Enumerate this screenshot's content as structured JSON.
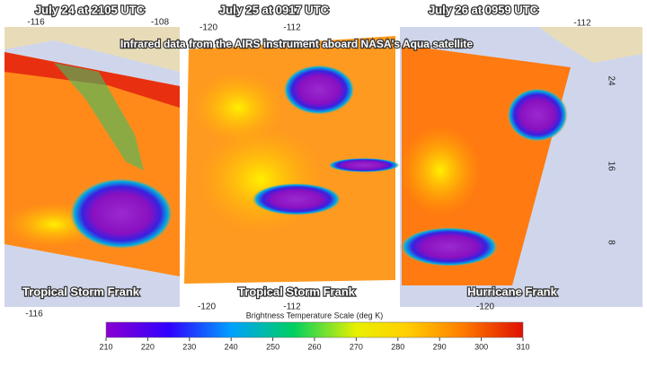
{
  "caption": "Infrared data from the AIRS instrument aboard NASA's Aqua satellite",
  "panels": [
    {
      "title": "July 24 at 2105 UTC",
      "label": "Tropical Storm Frank",
      "top_ticks": [
        "-116",
        "-108"
      ],
      "bottom_ticks": [
        "-116"
      ]
    },
    {
      "title": "July 25 at 0917 UTC",
      "label": "Tropical Storm Frank",
      "top_ticks": [
        "-120",
        "-112"
      ],
      "bottom_ticks": [
        "-120",
        "-112"
      ]
    },
    {
      "title": "July 26 at 0959 UTC",
      "label": "Hurricane Frank",
      "top_ticks": [
        "-112"
      ],
      "bottom_ticks": [
        "-120"
      ],
      "side_ticks": [
        "24",
        "16",
        "8"
      ]
    }
  ],
  "colorbar": {
    "title": "Brightness Temperature Scale (deg K)",
    "ticks": [
      210,
      220,
      230,
      240,
      250,
      260,
      270,
      280,
      290,
      300,
      310
    ]
  }
}
